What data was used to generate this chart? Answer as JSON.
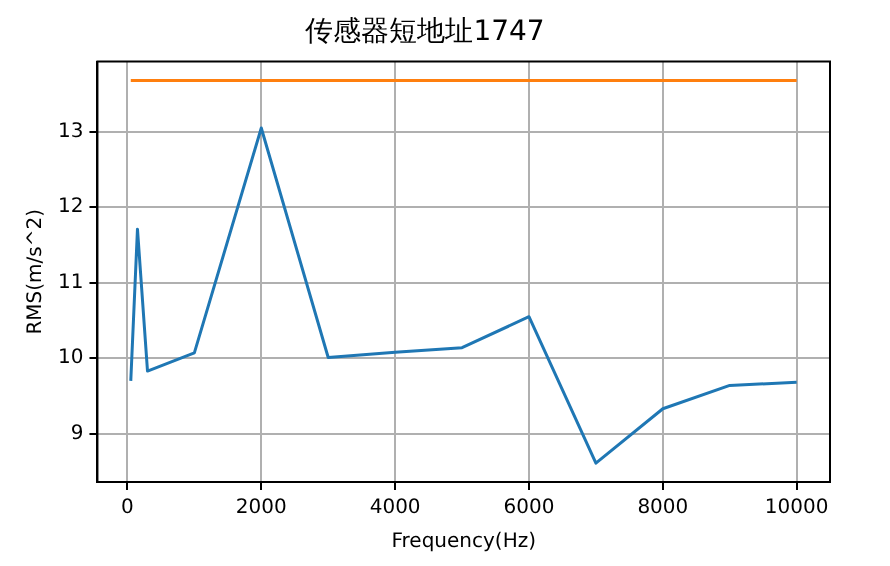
{
  "chart_data": {
    "type": "line",
    "title": "传感器短地址1747",
    "xlabel": "Frequency(Hz)",
    "ylabel": "RMS(m/s^2)",
    "series": [
      {
        "color": "#1f77b4",
        "x": [
          50,
          150,
          300,
          1000,
          2000,
          3000,
          4000,
          5000,
          6000,
          7000,
          8000,
          9000,
          10000
        ],
        "values": [
          9.7,
          11.71,
          9.83,
          10.07,
          13.05,
          10.01,
          10.08,
          10.14,
          10.55,
          8.61,
          9.33,
          9.64,
          9.68
        ]
      },
      {
        "color": "#ff7f0e",
        "x": [
          50,
          10000
        ],
        "values": [
          13.68,
          13.68
        ]
      }
    ],
    "xlim": [
      -448,
      10498
    ],
    "xticks": [
      0,
      2000,
      4000,
      6000,
      8000,
      10000
    ],
    "ylim": [
      8.36,
      13.93
    ],
    "yticks": [
      9,
      10,
      11,
      12,
      13
    ],
    "grid": true,
    "legend": false,
    "marker": "none",
    "line_style": "solid"
  }
}
